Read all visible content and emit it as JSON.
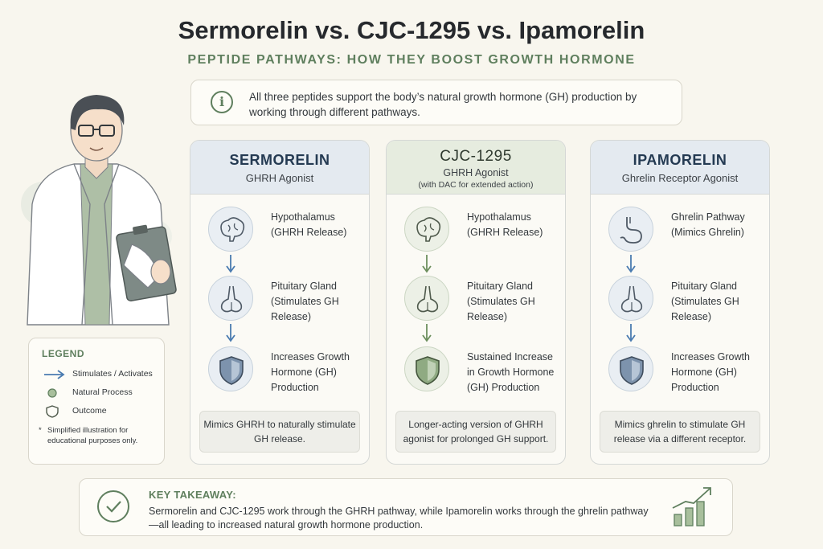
{
  "header": {
    "title": "Sermorelin vs. CJC-1295 vs. Ipamorelin",
    "subtitle": "PEPTIDE PATHWAYS: HOW THEY BOOST GROWTH HORMONE"
  },
  "intro": {
    "icon": "info-icon",
    "text": "All three peptides support the body’s natural growth hormone (GH) production by working through different pathways."
  },
  "cards": [
    {
      "name": "SERMORELIN",
      "role": "GHRH Agonist",
      "note": "",
      "accent": "#4a7bb0",
      "steps": [
        {
          "icon": "brain-icon",
          "label": "Hypothalamus (GHRH Release)"
        },
        {
          "icon": "pituitary-icon",
          "label": "Pituitary Gland (Stimulates GH Release)"
        },
        {
          "icon": "shield-icon",
          "label": "Increases Growth Hormone (GH) Production"
        }
      ],
      "summary": "Mimics GHRH to naturally stimulate GH release."
    },
    {
      "name": "CJC-1295",
      "role": "GHRH Agonist",
      "note": "(with DAC for extended action)",
      "accent": "#6d8f5e",
      "steps": [
        {
          "icon": "brain-icon",
          "label": "Hypothalamus (GHRH Release)"
        },
        {
          "icon": "pituitary-icon",
          "label": "Pituitary Gland (Stimulates GH Release)"
        },
        {
          "icon": "shield-icon",
          "label": "Sustained Increase in Growth Hormone (GH) Production"
        }
      ],
      "summary": "Longer-acting version of GHRH agonist for prolonged GH support."
    },
    {
      "name": "IPAMORELIN",
      "role": "Ghrelin Receptor Agonist",
      "note": "",
      "accent": "#4a7bb0",
      "steps": [
        {
          "icon": "stomach-icon",
          "label": "Ghrelin Pathway (Mimics Ghrelin)"
        },
        {
          "icon": "pituitary-icon",
          "label": "Pituitary Gland (Stimulates GH Release)"
        },
        {
          "icon": "shield-icon",
          "label": "Increases Growth Hormone (GH) Production"
        }
      ],
      "summary": "Mimics ghrelin to stimulate GH release via a different receptor."
    }
  ],
  "legend": {
    "title": "LEGEND",
    "items": [
      {
        "icon": "arrow-icon",
        "label": "Stimulates / Activates"
      },
      {
        "icon": "dot-icon",
        "label": "Natural Process"
      },
      {
        "icon": "shield-outline-icon",
        "label": "Outcome"
      }
    ],
    "footnote_mark": "*",
    "footnote": "Simplified illustration for educational purposes only."
  },
  "takeaway": {
    "title": "KEY TAKEAWAY:",
    "body": "Sermorelin and CJC-1295 work through the GHRH pathway, while Ipamorelin works through the ghrelin pathway—all leading to increased natural growth hormone production."
  },
  "colors": {
    "accent_green": "#5f7f5e",
    "accent_blue": "#4a7bb0",
    "background": "#f8f6ee"
  }
}
